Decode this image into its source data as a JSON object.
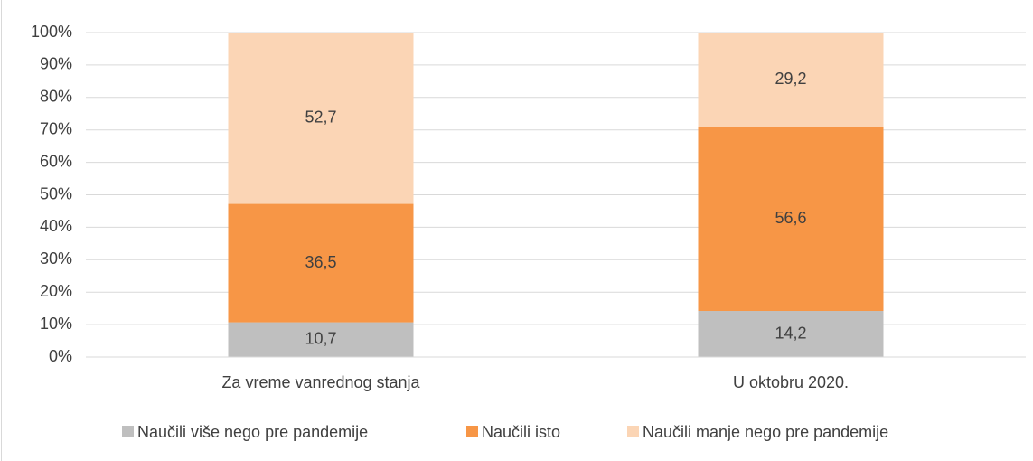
{
  "chart_data": {
    "type": "stacked_bar",
    "categories": [
      "Za vreme vanrednog stanja",
      "U oktobru 2020."
    ],
    "series": [
      {
        "name": "Naučili više nego pre pandemije",
        "color": "#bfbfbf",
        "values": [
          10.7,
          14.2
        ],
        "value_labels": [
          "10,7",
          "14,2"
        ]
      },
      {
        "name": "Naučili isto",
        "color": "#f79646",
        "values": [
          36.5,
          56.6
        ],
        "value_labels": [
          "36,5",
          "56,6"
        ]
      },
      {
        "name": "Naučili manje nego pre pandemije",
        "color": "#fbd5b5",
        "values": [
          52.7,
          29.2
        ],
        "value_labels": [
          "52,7",
          "29,2"
        ]
      }
    ],
    "ylim": [
      0,
      100
    ],
    "yticks": [
      {
        "value": 0,
        "label": "0%"
      },
      {
        "value": 10,
        "label": "10%"
      },
      {
        "value": 20,
        "label": "20%"
      },
      {
        "value": 30,
        "label": "30%"
      },
      {
        "value": 40,
        "label": "40%"
      },
      {
        "value": 50,
        "label": "50%"
      },
      {
        "value": 60,
        "label": "60%"
      },
      {
        "value": 70,
        "label": "70%"
      },
      {
        "value": 80,
        "label": "80%"
      },
      {
        "value": 90,
        "label": "90%"
      },
      {
        "value": 100,
        "label": "100%"
      }
    ],
    "grid": true,
    "legend": "bottom"
  }
}
